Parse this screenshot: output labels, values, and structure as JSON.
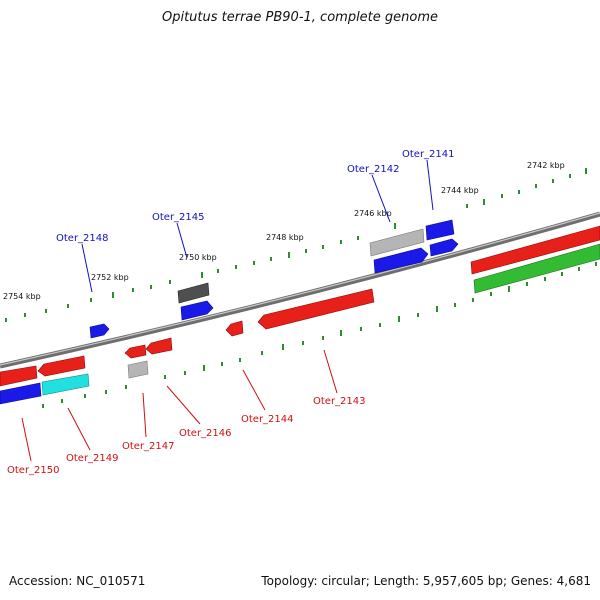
{
  "header": {
    "title": "Opitutus terrae PB90-1, complete genome"
  },
  "footer": {
    "accession": "Accession: NC_010571",
    "summary": "Topology: circular; Length: 5,957,605 bp; Genes: 4,681"
  },
  "colors": {
    "background": "#ffffff",
    "backbone": "#7a7a7a",
    "ticks": "#2e8b2e",
    "forward_gene": "#e8201a",
    "reverse_gene": "#1a1ae8",
    "rna_gene": "#aaaaaa",
    "rna_gene_dark": "#555555",
    "cyan_gene": "#22e0e0",
    "green_gene": "#33bb33",
    "label_forward": "#d01010",
    "label_reverse": "#1010c0"
  },
  "scale_labels": [
    "2742 kbp",
    "2744 kbp",
    "2746 kbp",
    "2748 kbp",
    "2750 kbp",
    "2752 kbp",
    "2754 kbp"
  ],
  "gene_labels": [
    {
      "name": "Oter_2141",
      "strand": "reverse"
    },
    {
      "name": "Oter_2142",
      "strand": "reverse"
    },
    {
      "name": "Oter_2145",
      "strand": "reverse"
    },
    {
      "name": "Oter_2148",
      "strand": "reverse"
    },
    {
      "name": "Oter_2143",
      "strand": "forward"
    },
    {
      "name": "Oter_2144",
      "strand": "forward"
    },
    {
      "name": "Oter_2146",
      "strand": "forward"
    },
    {
      "name": "Oter_2147",
      "strand": "forward"
    },
    {
      "name": "Oter_2149",
      "strand": "forward"
    },
    {
      "name": "Oter_2150",
      "strand": "forward"
    }
  ]
}
